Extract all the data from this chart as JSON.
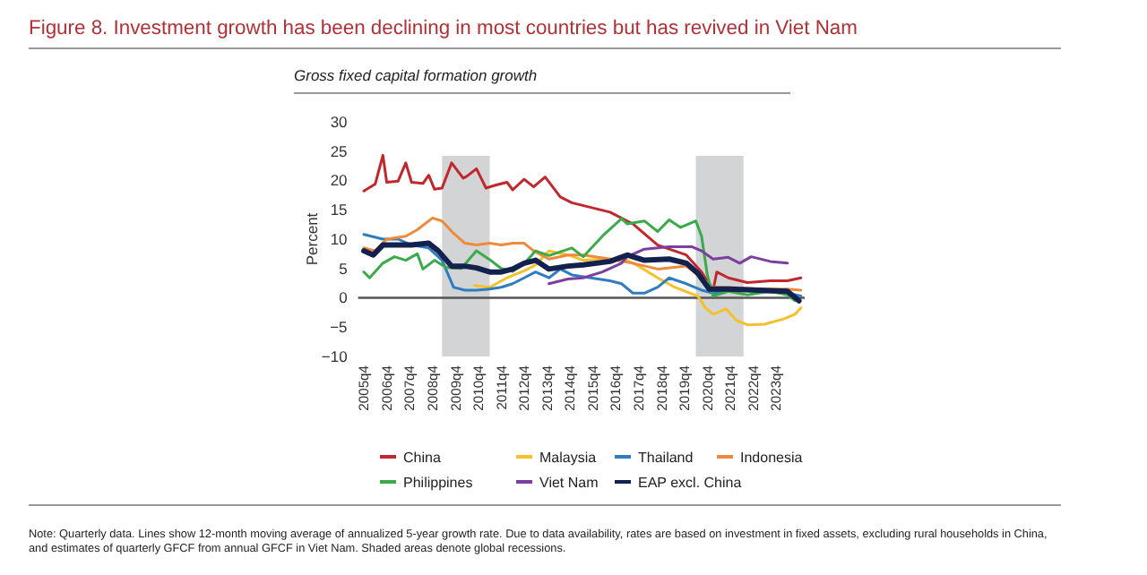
{
  "chart_data": {
    "type": "line",
    "title": "Figure 8. Investment growth has been declining in most countries but has revived in Viet Nam",
    "subtitle": "Gross fixed capital formation growth",
    "ylabel": "Percent",
    "annotations": [
      "Note: Quarterly data. Lines show 12-month moving average of annualized 5-year growth rate. Due to data availability, rates are based on investment in fixed assets, excluding rural households in China, and estimates of quarterly GFCF from annual GFCF in Viet Nam. Shaded areas denote global recessions."
    ],
    "xlim": [
      "2005-07",
      "2025-01"
    ],
    "xticks": [
      {
        "value": "2005-10",
        "label": "2005q4"
      },
      {
        "value": "2006-10",
        "label": "2006q4"
      },
      {
        "value": "2007-10",
        "label": "2007q4"
      },
      {
        "value": "2008-10",
        "label": "2008q4"
      },
      {
        "value": "2009-10",
        "label": "2009q4"
      },
      {
        "value": "2010-10",
        "label": "2010q4"
      },
      {
        "value": "2011-10",
        "label": "2011q4"
      },
      {
        "value": "2012-10",
        "label": "2012q4"
      },
      {
        "value": "2013-10",
        "label": "2013q4"
      },
      {
        "value": "2014-10",
        "label": "2014q4"
      },
      {
        "value": "2015-10",
        "label": "2015q4"
      },
      {
        "value": "2016-10",
        "label": "2016q4"
      },
      {
        "value": "2017-10",
        "label": "2017q4"
      },
      {
        "value": "2018-10",
        "label": "2018q4"
      },
      {
        "value": "2019-10",
        "label": "2019q4"
      },
      {
        "value": "2020-10",
        "label": "2020q4"
      },
      {
        "value": "2021-10",
        "label": "2021q4"
      },
      {
        "value": "2022-10",
        "label": "2022q4"
      },
      {
        "value": "2023-10",
        "label": "2023q4"
      }
    ],
    "ylim": [
      -10,
      30
    ],
    "yticks": [
      -10,
      -5,
      0,
      5,
      10,
      15,
      20,
      25,
      30
    ],
    "grid": false,
    "legend": "bottom",
    "bands": [
      {
        "axis": "x",
        "from": "2009-03",
        "to": "2011-04",
        "color": "#d3d4d6"
      },
      {
        "axis": "x",
        "from": "2020-04",
        "to": "2022-05",
        "color": "#d3d4d6"
      }
    ],
    "ref_lines": [
      {
        "axis": "y",
        "value": 0,
        "color": "#555555"
      }
    ],
    "series": [
      {
        "name": "China",
        "color": "#c0282d",
        "x": [
          "2005-10",
          "2006-04",
          "2006-08",
          "2006-10",
          "2007-04",
          "2007-08",
          "2007-11",
          "2008-05",
          "2008-08",
          "2008-11",
          "2009-03",
          "2009-08",
          "2010-02",
          "2010-04",
          "2010-09",
          "2011-02",
          "2011-07",
          "2012-01",
          "2012-04",
          "2012-10",
          "2013-03",
          "2013-09",
          "2014-05",
          "2014-11",
          "2015-09",
          "2016-07",
          "2017-07",
          "2018-08",
          "2019-11",
          "2020-07",
          "2021-01",
          "2021-03",
          "2021-09",
          "2022-07",
          "2023-07",
          "2024-04",
          "2024-11"
        ],
        "values": [
          18.2,
          19.4,
          24.3,
          19.7,
          19.9,
          23,
          19.7,
          19.5,
          20.9,
          18.5,
          18.7,
          23,
          20.4,
          20.7,
          22,
          18.7,
          19.2,
          19.7,
          18.4,
          20.2,
          18.9,
          20.6,
          17.2,
          16.2,
          15.4,
          14.6,
          12.6,
          9,
          7.3,
          4.4,
          1.3,
          4.4,
          3.4,
          2.6,
          2.9,
          2.9,
          3.4
        ]
      },
      {
        "name": "Malaysia",
        "color": "#f5c02c",
        "x": [
          "2010-08",
          "2011-04",
          "2012-01",
          "2012-10",
          "2013-04",
          "2013-11",
          "2014-09",
          "2015-05",
          "2016-07",
          "2017-04",
          "2017-10",
          "2018-08",
          "2019-05",
          "2020-05",
          "2020-09",
          "2021-01",
          "2021-08",
          "2022-01",
          "2022-07",
          "2023-04",
          "2024-02",
          "2024-08",
          "2024-11"
        ],
        "values": [
          2.1,
          1.8,
          3.4,
          4.6,
          5.6,
          8,
          7.3,
          6.4,
          6.6,
          6.4,
          5.4,
          3.4,
          1.8,
          0.3,
          -1.7,
          -2.8,
          -1.9,
          -3.8,
          -4.6,
          -4.5,
          -3.6,
          -2.8,
          -1.7
        ]
      },
      {
        "name": "Thailand",
        "color": "#2f7dc0",
        "x": [
          "2005-10",
          "2006-08",
          "2007-04",
          "2007-11",
          "2008-08",
          "2009-03",
          "2009-09",
          "2010-03",
          "2010-09",
          "2011-04",
          "2011-10",
          "2012-04",
          "2012-10",
          "2013-04",
          "2013-11",
          "2014-05",
          "2014-11",
          "2015-09",
          "2016-07",
          "2017-01",
          "2017-07",
          "2018-01",
          "2018-08",
          "2019-02",
          "2019-11",
          "2020-07",
          "2021-01",
          "2021-09",
          "2023-01",
          "2024-04",
          "2024-11"
        ],
        "values": [
          10.8,
          10,
          10,
          9,
          8.5,
          6.4,
          1.8,
          1.3,
          1.3,
          1.5,
          1.8,
          2.4,
          3.4,
          4.4,
          3.4,
          4.9,
          3.9,
          3.4,
          2.9,
          2.4,
          0.8,
          0.8,
          1.8,
          3.4,
          2.4,
          1.3,
          0.8,
          1.3,
          1.1,
          0.8,
          0.3
        ]
      },
      {
        "name": "Indonesia",
        "color": "#ef8a3c",
        "x": [
          "2005-10",
          "2006-04",
          "2006-10",
          "2007-08",
          "2008-02",
          "2008-10",
          "2009-03",
          "2009-09",
          "2010-03",
          "2010-09",
          "2011-04",
          "2011-10",
          "2012-04",
          "2012-10",
          "2013-03",
          "2013-11",
          "2014-09",
          "2015-05",
          "2016-07",
          "2017-07",
          "2018-08",
          "2019-11",
          "2020-05",
          "2021-01",
          "2021-09",
          "2023-01",
          "2024-04",
          "2024-11"
        ],
        "values": [
          8.5,
          8,
          10,
          10.5,
          11.6,
          13.6,
          13.1,
          11,
          9.3,
          9,
          9.3,
          9,
          9.3,
          9.3,
          8,
          6.6,
          7.3,
          7.3,
          6.6,
          5.9,
          4.9,
          5.4,
          3.9,
          1.8,
          1.8,
          1.5,
          1.5,
          1.3
        ]
      },
      {
        "name": "Philippines",
        "color": "#3aaa4a",
        "x": [
          "2005-10",
          "2006-01",
          "2006-08",
          "2007-02",
          "2007-08",
          "2008-02",
          "2008-05",
          "2008-11",
          "2009-05",
          "2010-01",
          "2010-09",
          "2011-04",
          "2011-10",
          "2012-04",
          "2012-10",
          "2013-04",
          "2013-11",
          "2014-11",
          "2015-05",
          "2016-03",
          "2017-01",
          "2017-04",
          "2018-01",
          "2018-08",
          "2019-02",
          "2019-08",
          "2020-04",
          "2020-07",
          "2020-10",
          "2021-01",
          "2021-09",
          "2022-07",
          "2023-07",
          "2024-04",
          "2024-08"
        ],
        "values": [
          4.4,
          3.4,
          5.9,
          7,
          6.4,
          7.5,
          4.9,
          6.4,
          5.2,
          5,
          8,
          6.5,
          5,
          4.5,
          5.8,
          8,
          7.2,
          8.5,
          7,
          10.5,
          13.5,
          12.6,
          13.1,
          11.3,
          13.3,
          12,
          13.1,
          10.5,
          3.9,
          0.3,
          1.1,
          0.5,
          1.1,
          0.5,
          -0.5
        ]
      },
      {
        "name": "Viet Nam",
        "color": "#7b3fa0",
        "x": [
          "2013-11",
          "2014-09",
          "2015-05",
          "2016-03",
          "2017-01",
          "2017-04",
          "2018-01",
          "2019-02",
          "2020-02",
          "2020-07",
          "2021-01",
          "2021-09",
          "2022-03",
          "2022-09",
          "2023-07",
          "2024-04"
        ],
        "values": [
          2.4,
          3.2,
          3.4,
          4.4,
          5.9,
          7,
          8.3,
          8.7,
          8.7,
          8,
          6.6,
          6.9,
          5.9,
          7,
          6.2,
          5.9
        ]
      },
      {
        "name": "EAP excl. China",
        "color": "#13214e",
        "x": [
          "2005-10",
          "2006-03",
          "2006-08",
          "2007-04",
          "2007-11",
          "2008-08",
          "2009-01",
          "2009-08",
          "2010-03",
          "2010-09",
          "2011-04",
          "2011-10",
          "2012-04",
          "2012-10",
          "2013-04",
          "2013-11",
          "2014-09",
          "2015-05",
          "2016-07",
          "2017-04",
          "2018-01",
          "2019-02",
          "2019-11",
          "2020-05",
          "2020-11",
          "2021-09",
          "2023-01",
          "2024-04",
          "2024-10"
        ],
        "values": [
          8,
          7.3,
          9,
          9,
          9,
          9.3,
          8,
          5.4,
          5.4,
          5.1,
          4.4,
          4.4,
          4.9,
          5.9,
          6.4,
          4.9,
          5.4,
          5.6,
          6.2,
          7.3,
          6.4,
          6.6,
          5.9,
          4.2,
          1.5,
          1.5,
          1.3,
          1.1,
          -0.5
        ]
      }
    ]
  }
}
